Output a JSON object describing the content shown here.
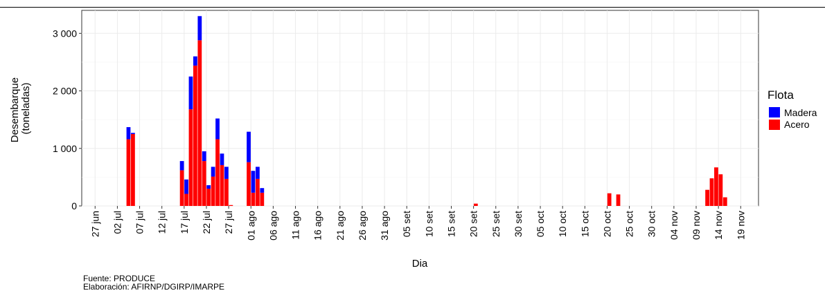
{
  "chart_data": {
    "type": "bar",
    "stacked": true,
    "xlabel": "Dia",
    "ylabel_lines": [
      "Desembarque",
      "(toneladas)"
    ],
    "ylim": [
      0,
      3400
    ],
    "y_ticks": [
      0,
      1000,
      2000,
      3000
    ],
    "y_tick_labels": [
      "0",
      "1 000",
      "2 000",
      "3 000"
    ],
    "grid": true,
    "x_ticks": [
      "2024-06-27",
      "2024-07-02",
      "2024-07-07",
      "2024-07-12",
      "2024-07-17",
      "2024-07-22",
      "2024-07-27",
      "2024-08-01",
      "2024-08-06",
      "2024-08-11",
      "2024-08-16",
      "2024-08-21",
      "2024-08-26",
      "2024-08-31",
      "2024-09-05",
      "2024-09-10",
      "2024-09-15",
      "2024-09-20",
      "2024-09-25",
      "2024-09-30",
      "2024-10-05",
      "2024-10-10",
      "2024-10-15",
      "2024-10-20",
      "2024-10-25",
      "2024-10-30",
      "2024-11-04",
      "2024-11-09",
      "2024-11-14",
      "2024-11-19"
    ],
    "x_tick_labels": [
      "27 jun",
      "02 jul",
      "07 jul",
      "12 jul",
      "17 jul",
      "22 jul",
      "27 jul",
      "01 ago",
      "06 ago",
      "11 ago",
      "16 ago",
      "21 ago",
      "26 ago",
      "31 ago",
      "05 set",
      "10 set",
      "15 set",
      "20 set",
      "25 set",
      "30 set",
      "05 oct",
      "10 oct",
      "15 oct",
      "20 oct",
      "25 oct",
      "30 oct",
      "04 nov",
      "09 nov",
      "14 nov",
      "19 nov"
    ],
    "x_range": [
      "2024-06-24",
      "2024-11-23"
    ],
    "legend": {
      "title": "Flota",
      "position": "right"
    },
    "series": [
      {
        "name": "Madera",
        "color": "#0000ff"
      },
      {
        "name": "Acero",
        "color": "#ff0000"
      }
    ],
    "data": [
      {
        "date": "2024-07-04",
        "Acero": 1160,
        "Madera": 210
      },
      {
        "date": "2024-07-05",
        "Acero": 1250,
        "Madera": 20
      },
      {
        "date": "2024-07-16",
        "Acero": 620,
        "Madera": 160
      },
      {
        "date": "2024-07-17",
        "Acero": 210,
        "Madera": 250
      },
      {
        "date": "2024-07-18",
        "Acero": 1680,
        "Madera": 570
      },
      {
        "date": "2024-07-19",
        "Acero": 2440,
        "Madera": 160
      },
      {
        "date": "2024-07-20",
        "Acero": 2880,
        "Madera": 420
      },
      {
        "date": "2024-07-21",
        "Acero": 780,
        "Madera": 170
      },
      {
        "date": "2024-07-22",
        "Acero": 300,
        "Madera": 60
      },
      {
        "date": "2024-07-23",
        "Acero": 510,
        "Madera": 170
      },
      {
        "date": "2024-07-24",
        "Acero": 1160,
        "Madera": 360
      },
      {
        "date": "2024-07-25",
        "Acero": 710,
        "Madera": 200
      },
      {
        "date": "2024-07-26",
        "Acero": 470,
        "Madera": 210
      },
      {
        "date": "2024-07-27",
        "Acero": 15,
        "Madera": 0
      },
      {
        "date": "2024-07-31",
        "Acero": 760,
        "Madera": 530
      },
      {
        "date": "2024-08-01",
        "Acero": 230,
        "Madera": 380
      },
      {
        "date": "2024-08-02",
        "Acero": 470,
        "Madera": 210
      },
      {
        "date": "2024-08-03",
        "Acero": 230,
        "Madera": 80
      },
      {
        "date": "2024-09-20",
        "Acero": 40,
        "Madera": 0
      },
      {
        "date": "2024-10-20",
        "Acero": 220,
        "Madera": 0
      },
      {
        "date": "2024-10-22",
        "Acero": 200,
        "Madera": 0
      },
      {
        "date": "2024-11-11",
        "Acero": 280,
        "Madera": 0
      },
      {
        "date": "2024-11-12",
        "Acero": 480,
        "Madera": 0
      },
      {
        "date": "2024-11-13",
        "Acero": 670,
        "Madera": 0
      },
      {
        "date": "2024-11-14",
        "Acero": 550,
        "Madera": 0
      },
      {
        "date": "2024-11-15",
        "Acero": 150,
        "Madera": 0
      }
    ]
  },
  "caption": {
    "source": "Fuente: PRODUCE",
    "credit": "Elaboración: AFIRNP/DGIRP/IMARPE"
  }
}
